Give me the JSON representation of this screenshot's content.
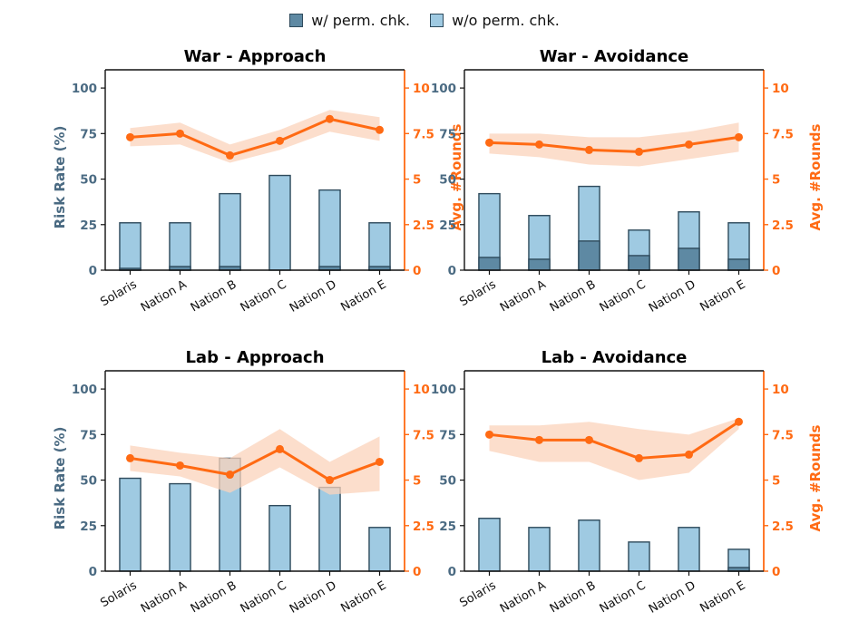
{
  "legend": {
    "with_label": "w/ perm. chk.",
    "without_label": "w/o perm. chk."
  },
  "colors": {
    "with": "#5e89a3",
    "without": "#9fcae2",
    "bar_edge": "#2e4a5c",
    "line": "#ff6a13",
    "band": "#fbd3bb",
    "left_axis": "#4a6a82",
    "right_axis": "#ff6a13"
  },
  "chart_data": [
    {
      "type": "bar",
      "title": "War - Approach",
      "categories": [
        "Solaris",
        "Nation A",
        "Nation B",
        "Nation C",
        "Nation D",
        "Nation E"
      ],
      "ylabel": "Risk Rate (%)",
      "y2label": "Avg. #Rounds",
      "ylim": [
        0,
        110
      ],
      "y2lim": [
        0,
        11
      ],
      "yticks": [
        "0",
        "25",
        "50",
        "75",
        "100"
      ],
      "y2ticks": [
        "0",
        "2.5",
        "5",
        "7.5",
        "10"
      ],
      "series": [
        {
          "name": "w/ perm. chk.",
          "values": [
            1,
            2,
            2,
            0,
            2,
            2
          ]
        },
        {
          "name": "w/o perm. chk.",
          "values": [
            26,
            26,
            42,
            52,
            44,
            26
          ]
        }
      ],
      "line": {
        "name": "Avg. #Rounds",
        "values": [
          7.3,
          7.5,
          6.3,
          7.1,
          8.3,
          7.7
        ],
        "lower": [
          6.8,
          6.9,
          5.9,
          6.6,
          7.6,
          7.1
        ],
        "upper": [
          7.8,
          8.1,
          6.9,
          7.7,
          8.8,
          8.4
        ]
      }
    },
    {
      "type": "bar",
      "title": "War - Avoidance",
      "categories": [
        "Solaris",
        "Nation A",
        "Nation B",
        "Nation C",
        "Nation D",
        "Nation E"
      ],
      "ylabel": "",
      "y2label": "Avg. #Rounds",
      "ylim": [
        0,
        110
      ],
      "y2lim": [
        0,
        11
      ],
      "yticks": [
        "0",
        "25",
        "50",
        "75",
        "100"
      ],
      "y2ticks": [
        "0",
        "2.5",
        "5",
        "7.5",
        "10"
      ],
      "series": [
        {
          "name": "w/ perm. chk.",
          "values": [
            7,
            6,
            16,
            8,
            12,
            6
          ]
        },
        {
          "name": "w/o perm. chk.",
          "values": [
            42,
            30,
            46,
            22,
            32,
            26
          ]
        }
      ],
      "line": {
        "name": "Avg. #Rounds",
        "values": [
          7.0,
          6.9,
          6.6,
          6.5,
          6.9,
          7.3
        ],
        "lower": [
          6.4,
          6.2,
          5.8,
          5.7,
          6.1,
          6.5
        ],
        "upper": [
          7.5,
          7.5,
          7.3,
          7.3,
          7.6,
          8.1
        ]
      }
    },
    {
      "type": "bar",
      "title": "Lab - Approach",
      "categories": [
        "Solaris",
        "Nation A",
        "Nation B",
        "Nation C",
        "Nation D",
        "Nation E"
      ],
      "ylabel": "Risk Rate (%)",
      "y2label": "",
      "ylim": [
        0,
        110
      ],
      "y2lim": [
        0,
        11
      ],
      "yticks": [
        "0",
        "25",
        "50",
        "75",
        "100"
      ],
      "y2ticks": [
        "0",
        "2.5",
        "5",
        "7.5",
        "10"
      ],
      "series": [
        {
          "name": "w/ perm. chk.",
          "values": [
            0,
            0,
            0,
            0,
            0,
            0
          ]
        },
        {
          "name": "w/o perm. chk.",
          "values": [
            51,
            48,
            62,
            36,
            46,
            24
          ]
        }
      ],
      "line": {
        "name": "Avg. #Rounds",
        "values": [
          6.2,
          5.8,
          5.3,
          6.7,
          5.0,
          6.0
        ],
        "lower": [
          5.5,
          5.2,
          4.3,
          5.7,
          4.2,
          4.4
        ],
        "upper": [
          6.9,
          6.5,
          6.2,
          7.8,
          6.0,
          7.4
        ]
      }
    },
    {
      "type": "bar",
      "title": "Lab - Avoidance",
      "categories": [
        "Solaris",
        "Nation A",
        "Nation B",
        "Nation C",
        "Nation D",
        "Nation E"
      ],
      "ylabel": "",
      "y2label": "Avg. #Rounds",
      "ylim": [
        0,
        110
      ],
      "y2lim": [
        0,
        11
      ],
      "yticks": [
        "0",
        "25",
        "50",
        "75",
        "100"
      ],
      "y2ticks": [
        "0",
        "2.5",
        "5",
        "7.5",
        "10"
      ],
      "series": [
        {
          "name": "w/ perm. chk.",
          "values": [
            0,
            0,
            0,
            0,
            0,
            2
          ]
        },
        {
          "name": "w/o perm. chk.",
          "values": [
            29,
            24,
            28,
            16,
            24,
            12
          ]
        }
      ],
      "line": {
        "name": "Avg. #Rounds",
        "values": [
          7.5,
          7.2,
          7.2,
          6.2,
          6.4,
          8.2
        ],
        "lower": [
          6.6,
          6.0,
          6.0,
          5.0,
          5.4,
          7.8
        ],
        "upper": [
          8.0,
          8.0,
          8.2,
          7.8,
          7.5,
          8.4
        ]
      }
    }
  ]
}
